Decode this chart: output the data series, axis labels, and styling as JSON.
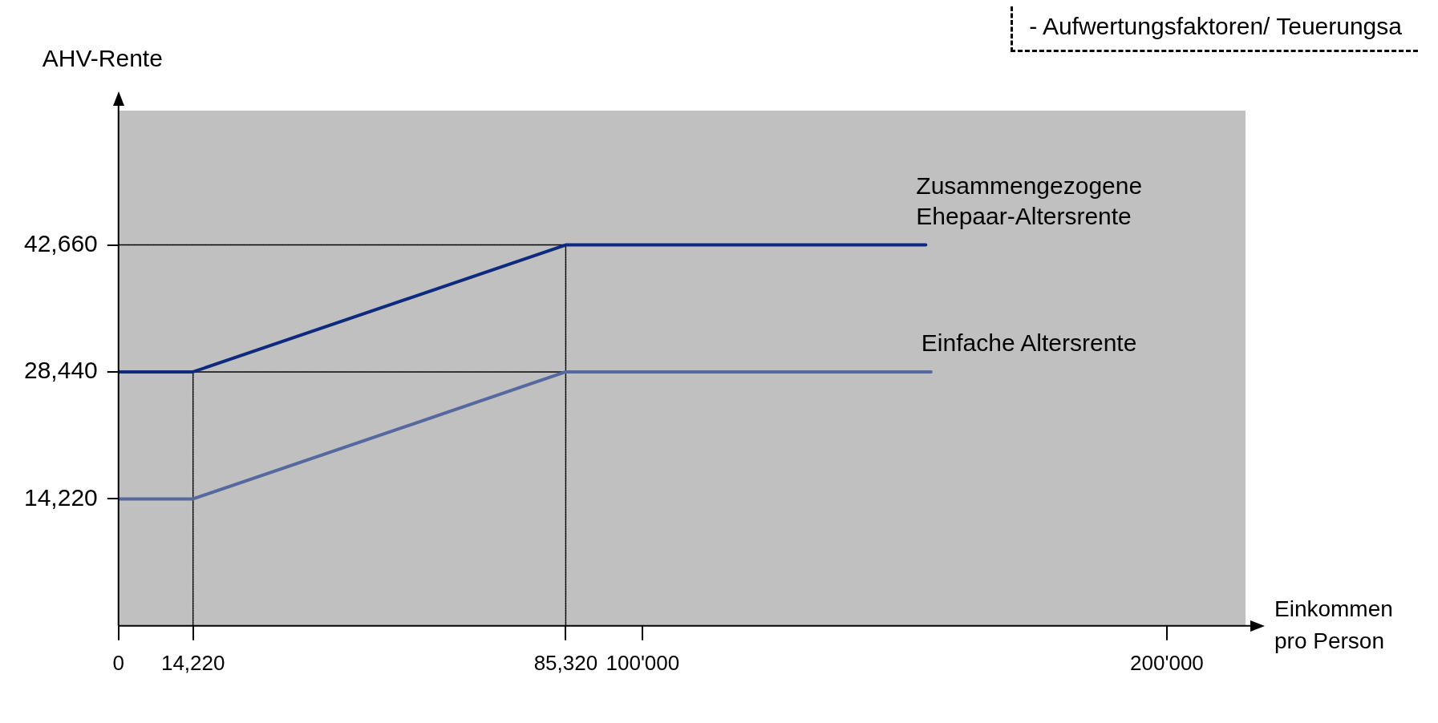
{
  "chart_data": {
    "type": "line",
    "ylabel": "AHV-Rente",
    "xlabel": "Einkommen pro Person",
    "marker": "none",
    "legend": false,
    "grid": false,
    "xlim": [
      0,
      215000
    ],
    "xticks": [
      0,
      {
        "value": 14220,
        "label": "14,220"
      },
      {
        "value": 85320,
        "label": "85,320"
      },
      {
        "value": 100000,
        "label": "100'000"
      },
      {
        "value": 200000,
        "label": "200'000"
      }
    ],
    "ylim": [
      0,
      57700
    ],
    "yticks": [
      {
        "value": 14220,
        "label": "14,220"
      },
      {
        "value": 28440,
        "label": "28,440"
      },
      {
        "value": 42660,
        "label": "42,660"
      }
    ],
    "series": [
      {
        "name": "Zusammengezogene Ehepaar-Altersrente",
        "color": "#0d2a7f",
        "x": [
          0,
          14220,
          85320,
          154000
        ],
        "values": [
          28440,
          28440,
          42660,
          42660
        ],
        "line_style": "solid"
      },
      {
        "name": "Einfache Altersrente",
        "color": "#5568a0",
        "x": [
          0,
          14220,
          85320,
          155000
        ],
        "values": [
          14220,
          14220,
          28440,
          28440
        ],
        "line_style": "solid"
      },
      {
        "color": "#000000",
        "x": [
          0,
          85320
        ],
        "values": [
          42660,
          42660
        ],
        "line_style": "dotted"
      },
      {
        "color": "#000000",
        "x": [
          14220,
          85320
        ],
        "values": [
          28440,
          28440
        ],
        "line_style": "dotted"
      },
      {
        "color": "#000000",
        "x": [
          14220,
          14220
        ],
        "values": [
          0,
          28440
        ],
        "line_style": "dotted"
      },
      {
        "color": "#000000",
        "x": [
          85320,
          85320
        ],
        "values": [
          0,
          42660
        ],
        "line_style": "dotted"
      }
    ],
    "annotations": [
      "- Aufwertungsfaktoren/ Teuerungsa"
    ]
  }
}
